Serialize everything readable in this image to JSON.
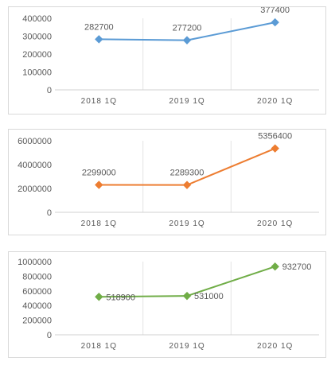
{
  "chart_data": [
    {
      "type": "line",
      "categories": [
        "2018 1Q",
        "2019 1Q",
        "2020 1Q"
      ],
      "series": [
        {
          "values": [
            282700,
            277200,
            377400
          ]
        }
      ],
      "data_labels": [
        "282700",
        "277200",
        "377400"
      ],
      "ylim": [
        0,
        400000
      ],
      "yticks": [
        0,
        100000,
        200000,
        300000,
        400000
      ],
      "ytick_labels": [
        "0",
        "100000",
        "200000",
        "300000",
        "400000"
      ],
      "color": "#5b9bd5",
      "grid": "vertical"
    },
    {
      "type": "line",
      "categories": [
        "2018 1Q",
        "2019 1Q",
        "2020 1Q"
      ],
      "series": [
        {
          "values": [
            2299000,
            2289300,
            5356400
          ]
        }
      ],
      "data_labels": [
        "2299000",
        "2289300",
        "5356400"
      ],
      "ylim": [
        0,
        6000000
      ],
      "yticks": [
        0,
        2000000,
        4000000,
        6000000
      ],
      "ytick_labels": [
        "0",
        "2000000",
        "4000000",
        "6000000"
      ],
      "color": "#ed7d31",
      "grid": "vertical"
    },
    {
      "type": "line",
      "categories": [
        "2018 1Q",
        "2019 1Q",
        "2020 1Q"
      ],
      "series": [
        {
          "values": [
            518900,
            531000,
            932700
          ]
        }
      ],
      "data_labels": [
        "518900",
        "531000",
        "932700"
      ],
      "ylim": [
        0,
        1000000
      ],
      "yticks": [
        0,
        200000,
        400000,
        600000,
        800000,
        1000000
      ],
      "ytick_labels": [
        "0",
        "200000",
        "400000",
        "600000",
        "800000",
        "1000000"
      ],
      "color": "#70ad47",
      "grid": "vertical"
    }
  ]
}
